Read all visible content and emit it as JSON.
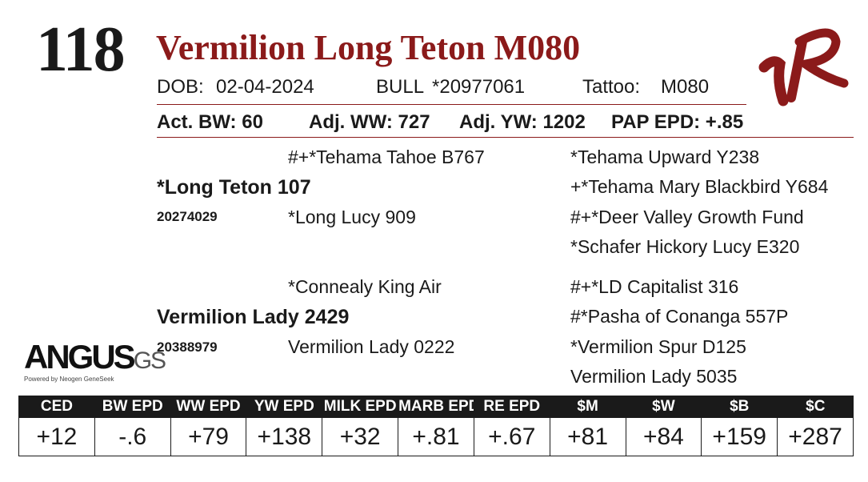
{
  "lot_number": "118",
  "animal_name": "Vermilion Long Teton M080",
  "brand_logo": "VR",
  "info": {
    "dob_label": "DOB:",
    "dob": "02-04-2024",
    "sex": "BULL",
    "registration": "*20977061",
    "tattoo_label": "Tattoo:",
    "tattoo": "M080"
  },
  "performance": {
    "act_bw": "Act. BW: 60",
    "adj_ww": "Adj. WW: 727",
    "adj_yw": "Adj. YW: 1202",
    "pap_epd": "PAP EPD: +.85"
  },
  "pedigree": {
    "sire": {
      "name": "*Long Teton 107",
      "reg": "20274029"
    },
    "sire_sire": "#+*Tehama Tahoe B767",
    "sire_dam": "*Long Lucy 909",
    "sire_sire_sire": "*Tehama Upward Y238",
    "sire_sire_dam": "+*Tehama Mary Blackbird Y684",
    "sire_dam_sire": "#+*Deer Valley Growth Fund",
    "sire_dam_dam": "*Schafer Hickory Lucy E320",
    "dam": {
      "name": "Vermilion Lady 2429",
      "reg": "20388979"
    },
    "dam_sire": "*Connealy King Air",
    "dam_dam": "Vermilion Lady 0222",
    "dam_sire_sire": "#+*LD Capitalist 316",
    "dam_sire_dam": "#*Pasha of Conanga 557P",
    "dam_dam_sire": "*Vermilion Spur D125",
    "dam_dam_dam": "Vermilion Lady 5035"
  },
  "angus_logo": {
    "word": "ANGUS",
    "suffix": "GS",
    "tagline": "Powered by Neogen GeneSeek"
  },
  "epds": {
    "headers": [
      "CED",
      "BW EPD",
      "WW EPD",
      "YW EPD",
      "MILK EPD",
      "MARB EPD",
      "RE EPD",
      "$M",
      "$W",
      "$B",
      "$C"
    ],
    "values": [
      "+12",
      "-.6",
      "+79",
      "+138",
      "+32",
      "+.81",
      "+.67",
      "+81",
      "+84",
      "+159",
      "+287"
    ]
  },
  "colors": {
    "accent": "#8b1a1a",
    "text": "#1a1a1a",
    "header_bg": "#1a1a1a"
  }
}
